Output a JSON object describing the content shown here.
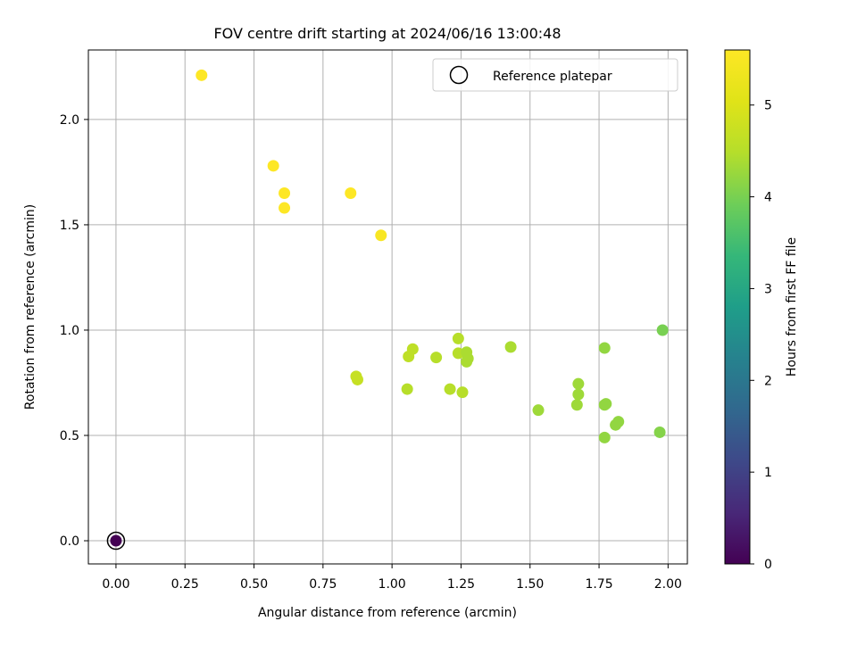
{
  "chart_data": {
    "type": "scatter",
    "title": "FOV centre drift starting at 2024/06/16 13:00:48",
    "xlabel": "Angular distance from reference (arcmin)",
    "ylabel": "Rotation from reference (arcmin)",
    "xlim": [
      -0.1,
      2.07
    ],
    "ylim": [
      -0.11,
      2.33
    ],
    "xticks": [
      0.0,
      0.25,
      0.5,
      0.75,
      1.0,
      1.25,
      1.5,
      1.75,
      2.0
    ],
    "xtick_labels": [
      "0.00",
      "0.25",
      "0.50",
      "0.75",
      "1.00",
      "1.25",
      "1.50",
      "1.75",
      "2.00"
    ],
    "yticks": [
      0.0,
      0.5,
      1.0,
      1.5,
      2.0
    ],
    "ytick_labels": [
      "0.0",
      "0.5",
      "1.0",
      "1.5",
      "2.0"
    ],
    "grid": true,
    "legend": {
      "placement": "top-right",
      "entries": [
        "Reference platepar"
      ]
    },
    "colorbar": {
      "label": "Hours from first FF file",
      "colormap": "viridis",
      "range": [
        0,
        5.6
      ],
      "ticks": [
        0,
        1,
        2,
        3,
        4,
        5
      ],
      "tick_labels": [
        "0",
        "1",
        "2",
        "3",
        "4",
        "5"
      ]
    },
    "reference_point": {
      "x": 0.0,
      "y": 0.0
    },
    "points": [
      {
        "x": 0.0,
        "y": 0.0,
        "c": 0.0
      },
      {
        "x": 0.31,
        "y": 2.21,
        "c": 5.6
      },
      {
        "x": 0.57,
        "y": 1.78,
        "c": 5.6
      },
      {
        "x": 0.61,
        "y": 1.65,
        "c": 5.6
      },
      {
        "x": 0.61,
        "y": 1.58,
        "c": 5.6
      },
      {
        "x": 0.85,
        "y": 1.65,
        "c": 5.6
      },
      {
        "x": 0.96,
        "y": 1.45,
        "c": 5.5
      },
      {
        "x": 0.87,
        "y": 0.78,
        "c": 4.7
      },
      {
        "x": 0.875,
        "y": 0.765,
        "c": 4.7
      },
      {
        "x": 1.06,
        "y": 0.875,
        "c": 4.6
      },
      {
        "x": 1.075,
        "y": 0.91,
        "c": 4.6
      },
      {
        "x": 1.055,
        "y": 0.72,
        "c": 4.5
      },
      {
        "x": 1.16,
        "y": 0.87,
        "c": 4.5
      },
      {
        "x": 1.21,
        "y": 0.72,
        "c": 4.5
      },
      {
        "x": 1.24,
        "y": 0.96,
        "c": 4.5
      },
      {
        "x": 1.24,
        "y": 0.89,
        "c": 4.5
      },
      {
        "x": 1.255,
        "y": 0.705,
        "c": 4.5
      },
      {
        "x": 1.27,
        "y": 0.895,
        "c": 4.4
      },
      {
        "x": 1.27,
        "y": 0.85,
        "c": 4.4
      },
      {
        "x": 1.275,
        "y": 0.865,
        "c": 4.4
      },
      {
        "x": 1.43,
        "y": 0.92,
        "c": 4.4
      },
      {
        "x": 1.53,
        "y": 0.62,
        "c": 4.3
      },
      {
        "x": 1.67,
        "y": 0.645,
        "c": 4.3
      },
      {
        "x": 1.675,
        "y": 0.745,
        "c": 4.3
      },
      {
        "x": 1.675,
        "y": 0.695,
        "c": 4.3
      },
      {
        "x": 1.77,
        "y": 0.915,
        "c": 4.2
      },
      {
        "x": 1.77,
        "y": 0.645,
        "c": 4.2
      },
      {
        "x": 1.775,
        "y": 0.65,
        "c": 4.2
      },
      {
        "x": 1.77,
        "y": 0.49,
        "c": 4.2
      },
      {
        "x": 1.81,
        "y": 0.55,
        "c": 4.2
      },
      {
        "x": 1.82,
        "y": 0.565,
        "c": 4.2
      },
      {
        "x": 1.97,
        "y": 0.515,
        "c": 4.1
      },
      {
        "x": 1.98,
        "y": 1.0,
        "c": 4.0
      }
    ]
  }
}
